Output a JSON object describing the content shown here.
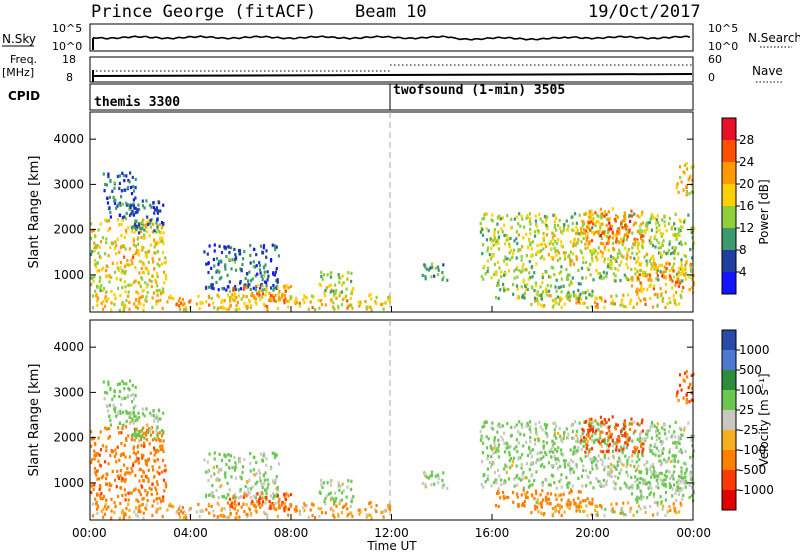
{
  "header": {
    "station": "Prince George (fitACF)",
    "beam": "Beam 10",
    "date": "19/Oct/2017"
  },
  "strip_top": {
    "left_label": "N.Sky",
    "left_ticks": [
      "10^5",
      "10^0"
    ],
    "right_label": "N.Search",
    "right_ticks": [
      "10^5",
      "10^0"
    ]
  },
  "strip_mid": {
    "left_label_1": "Freq.",
    "left_label_2": "[MHz]",
    "left_ticks": [
      "18",
      "8"
    ],
    "right_label": "Nave",
    "right_ticks": [
      "60",
      "0"
    ]
  },
  "cpid": {
    "label": "CPID",
    "mode_1": "themis 3300",
    "mode_2": "twofsound (1-min) 3505"
  },
  "power_panel": {
    "ylabel": "Slant Range [km]",
    "colorbar_label": "Power [dB]",
    "colorbar_ticks": [
      "28",
      "24",
      "20",
      "16",
      "12",
      "8",
      "4"
    ],
    "colors": [
      "#e8102a",
      "#ff5000",
      "#ff9a00",
      "#ffd000",
      "#8ecf3a",
      "#3c9a6e",
      "#1f3fa0",
      "#1414ff"
    ]
  },
  "velocity_panel": {
    "ylabel": "Slant Range [km]",
    "colorbar_label": "Velocity [m s⁻¹]",
    "colorbar_ticks": [
      "1000",
      "500",
      "100",
      "25",
      "-25",
      "-100",
      "-500",
      "-1000"
    ],
    "colors": [
      "#2a4aa8",
      "#4d7ad0",
      "#2e8c3c",
      "#6ac850",
      "#c8c8c0",
      "#f5b020",
      "#ff8000",
      "#ff3a00",
      "#e00000"
    ]
  },
  "time_axis": {
    "xlabel": "Time UT",
    "ticks": [
      "00:00",
      "04:00",
      "08:00",
      "12:00",
      "16:00",
      "20:00",
      "00:00"
    ]
  },
  "chart_data": {
    "type": "heatmap",
    "x_range_hours": [
      0,
      24
    ],
    "y_range_km": [
      180,
      4600
    ],
    "y_ticks_km": [
      1000,
      2000,
      3000,
      4000
    ],
    "x_ticks": [
      "00:00",
      "04:00",
      "08:00",
      "12:00",
      "16:00",
      "20:00",
      "00:00"
    ],
    "mode_change_hour": 12,
    "power_range_db": [
      0,
      32
    ],
    "velocity_range_ms": [
      -1200,
      1200
    ],
    "nave_range": [
      0,
      60
    ],
    "freq_range_mhz": [
      8,
      18
    ],
    "blobs": [
      {
        "t0": 0.0,
        "t1": 3.0,
        "r0": 600,
        "r1": 2300,
        "power": 16,
        "velocity": -200
      },
      {
        "t0": 0.5,
        "t1": 1.8,
        "r0": 2300,
        "r1": 3300,
        "power": 6,
        "velocity": 10
      },
      {
        "t0": 1.5,
        "t1": 2.9,
        "r0": 1900,
        "r1": 2700,
        "power": 6,
        "velocity": 5
      },
      {
        "t0": 0.0,
        "t1": 12.0,
        "r0": 250,
        "r1": 600,
        "power": 18,
        "velocity": -60
      },
      {
        "t0": 4.5,
        "t1": 7.5,
        "r0": 700,
        "r1": 1700,
        "power": 6,
        "velocity": 5
      },
      {
        "t0": 5.5,
        "t1": 8.0,
        "r0": 400,
        "r1": 800,
        "power": 20,
        "velocity": -300
      },
      {
        "t0": 9.0,
        "t1": 10.5,
        "r0": 600,
        "r1": 1100,
        "power": 14,
        "velocity": 0
      },
      {
        "t0": 13.2,
        "t1": 14.2,
        "r0": 900,
        "r1": 1300,
        "power": 8,
        "velocity": 0
      },
      {
        "t0": 15.5,
        "t1": 24.0,
        "r0": 900,
        "r1": 2400,
        "power": 14,
        "velocity": 5
      },
      {
        "t0": 17.5,
        "t1": 23.5,
        "r0": 300,
        "r1": 600,
        "power": 18,
        "velocity": -40
      },
      {
        "t0": 19.5,
        "t1": 22.0,
        "r0": 1700,
        "r1": 2500,
        "power": 22,
        "velocity": -400
      },
      {
        "t0": 21.5,
        "t1": 24.0,
        "r0": 600,
        "r1": 1300,
        "power": 20,
        "velocity": 10
      },
      {
        "t0": 23.3,
        "t1": 24.0,
        "r0": 2800,
        "r1": 3500,
        "power": 18,
        "velocity": -300
      },
      {
        "t0": 16.0,
        "t1": 20.0,
        "r0": 500,
        "r1": 900,
        "power": 12,
        "velocity": -150
      }
    ]
  }
}
